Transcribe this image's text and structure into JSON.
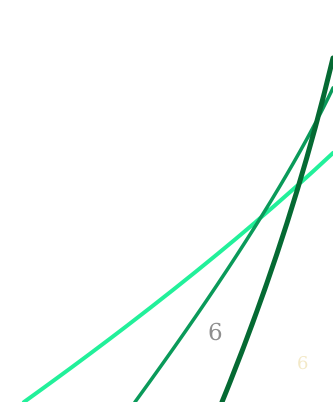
{
  "labels": {
    "primary": "6",
    "secondary": "6"
  },
  "colors": {
    "curve_bright": "#22F09A",
    "curve_medium": "#0A9A5A",
    "curve_dark": "#056A33",
    "label_primary": "#8F8F8F",
    "label_secondary": "#F3E9C8",
    "background": "#FFFFFF"
  }
}
